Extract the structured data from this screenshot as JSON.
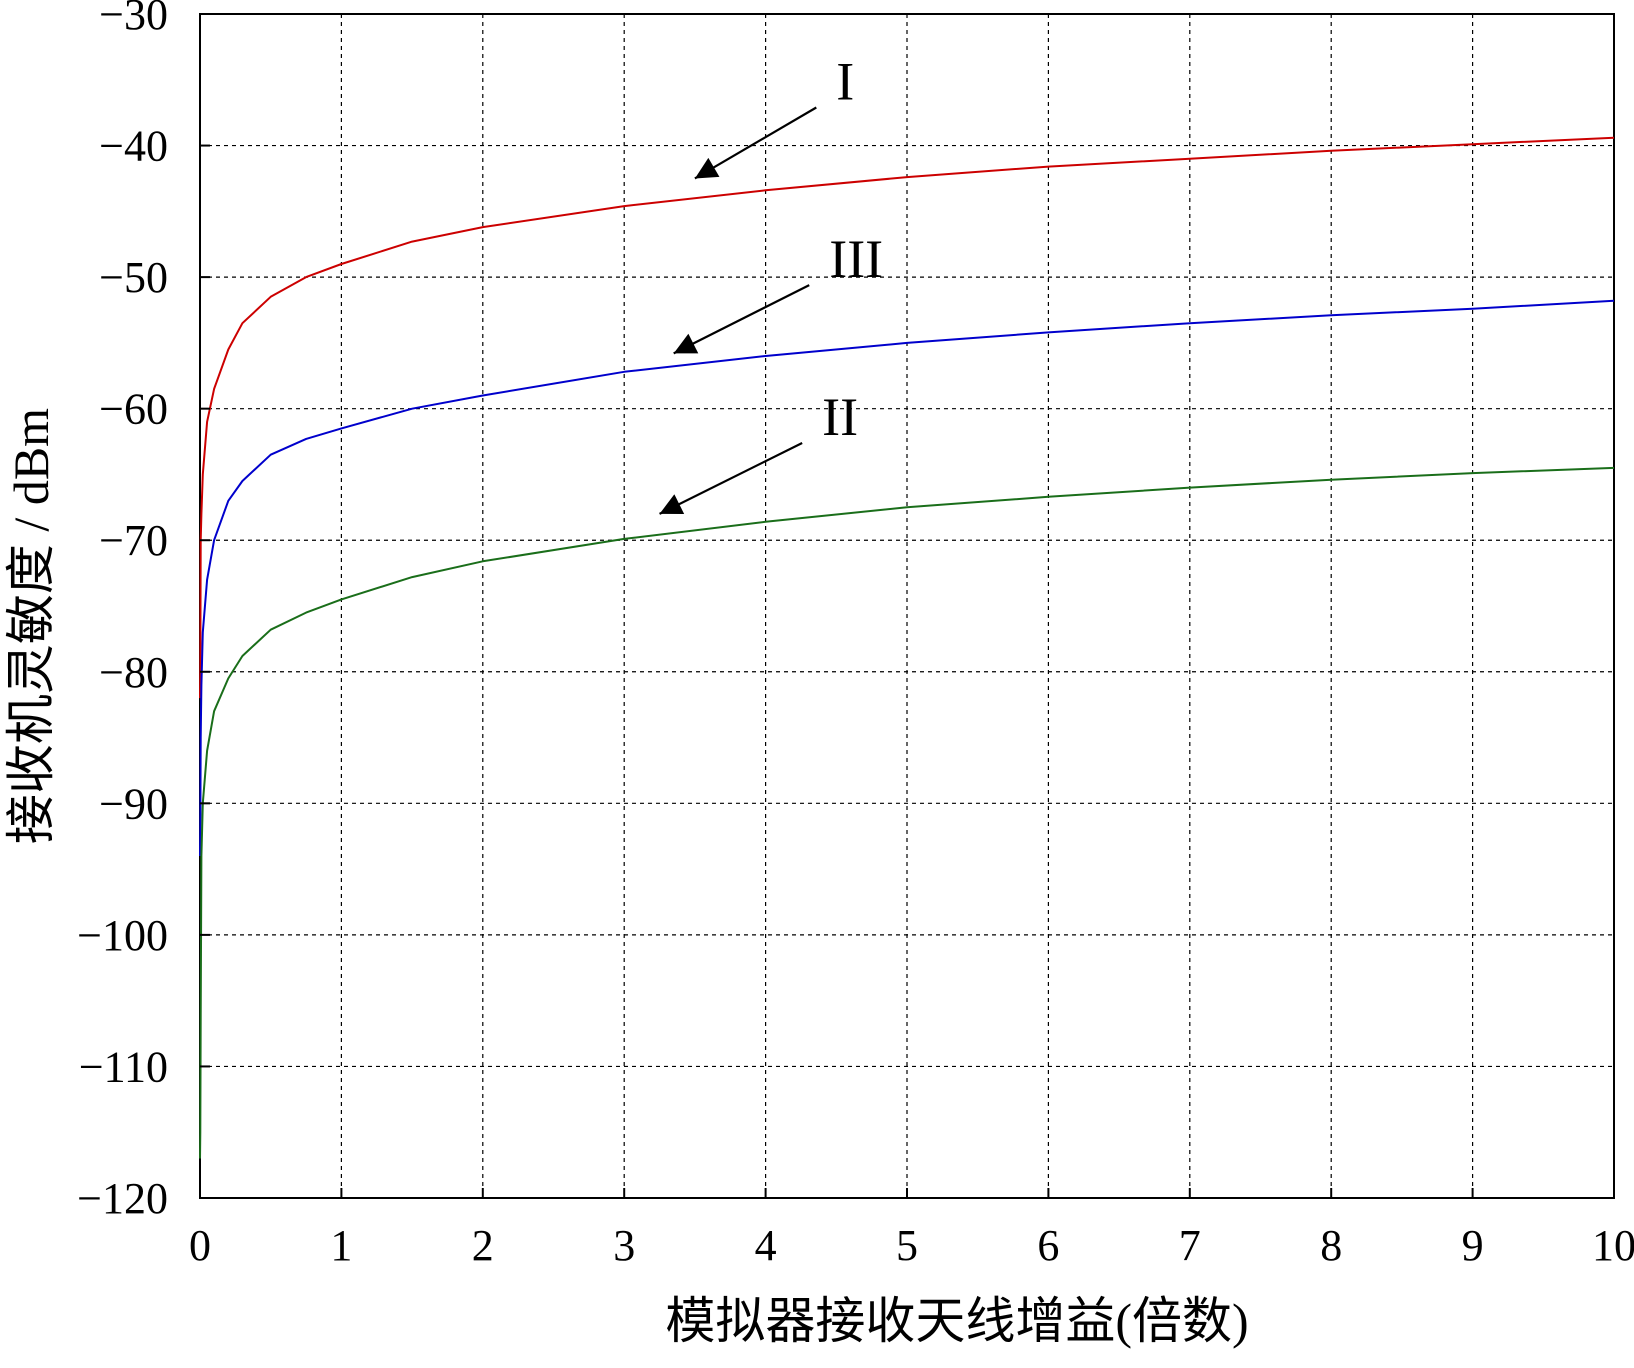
{
  "chart_data": {
    "type": "line",
    "xlabel": "模拟器接收天线增益(倍数)",
    "ylabel": "接收机灵敏度 / dBm",
    "xlim": [
      0,
      10
    ],
    "ylim": [
      -120,
      -30
    ],
    "x_ticks": [
      0,
      1,
      2,
      3,
      4,
      5,
      6,
      7,
      8,
      9,
      10
    ],
    "x_tick_labels": [
      "0",
      "1",
      "2",
      "3",
      "4",
      "5",
      "6",
      "7",
      "8",
      "9",
      "10"
    ],
    "y_ticks": [
      -30,
      -40,
      -50,
      -60,
      -70,
      -80,
      -90,
      -100,
      -110,
      -120
    ],
    "y_tick_labels": [
      "−30",
      "−40",
      "−50",
      "−60",
      "−70",
      "−80",
      "−90",
      "−100",
      "−110",
      "−120"
    ],
    "grid": true,
    "series": [
      {
        "name": "I",
        "color": "#cc0000",
        "x": [
          0.002,
          0.005,
          0.01,
          0.02,
          0.05,
          0.1,
          0.2,
          0.3,
          0.5,
          0.75,
          1,
          1.5,
          2,
          3,
          4,
          5,
          6,
          7,
          8,
          9,
          10
        ],
        "y": [
          -80,
          -70,
          -68,
          -65,
          -61,
          -58.5,
          -55.5,
          -53.5,
          -51.5,
          -50,
          -49,
          -47.3,
          -46.2,
          -44.6,
          -43.4,
          -42.4,
          -41.6,
          -41,
          -40.4,
          -39.9,
          -39.4
        ]
      },
      {
        "name": "III",
        "color": "#0000cc",
        "x": [
          0.002,
          0.005,
          0.01,
          0.02,
          0.05,
          0.1,
          0.2,
          0.3,
          0.5,
          0.75,
          1,
          1.5,
          2,
          3,
          4,
          5,
          6,
          7,
          8,
          9,
          10
        ],
        "y": [
          -92,
          -85,
          -81,
          -77,
          -73,
          -70,
          -67,
          -65.5,
          -63.5,
          -62.3,
          -61.5,
          -60,
          -59,
          -57.2,
          -56,
          -55,
          -54.2,
          -53.5,
          -52.9,
          -52.4,
          -51.8
        ]
      },
      {
        "name": "II",
        "color": "#1a6e1a",
        "x": [
          0.002,
          0.005,
          0.01,
          0.02,
          0.05,
          0.1,
          0.2,
          0.3,
          0.5,
          0.75,
          1,
          1.5,
          2,
          3,
          4,
          5,
          6,
          7,
          8,
          9,
          10
        ],
        "y": [
          -115,
          -106,
          -94,
          -90,
          -86,
          -83,
          -80.5,
          -78.8,
          -76.8,
          -75.5,
          -74.5,
          -72.8,
          -71.6,
          -69.9,
          -68.6,
          -67.5,
          -66.7,
          -66,
          -65.4,
          -64.9,
          -64.5
        ]
      }
    ],
    "annotations": [
      {
        "label": "I",
        "target_series": "I",
        "text_x": 4.5,
        "text_y": -36.5,
        "arrow_tip_x": 3.5,
        "arrow_tip_y": -42.5
      },
      {
        "label": "III",
        "target_series": "III",
        "text_x": 4.45,
        "text_y": -50,
        "arrow_tip_x": 3.35,
        "arrow_tip_y": -55.8
      },
      {
        "label": "II",
        "target_series": "II",
        "text_x": 4.4,
        "text_y": -62,
        "arrow_tip_x": 3.25,
        "arrow_tip_y": -68
      }
    ]
  }
}
